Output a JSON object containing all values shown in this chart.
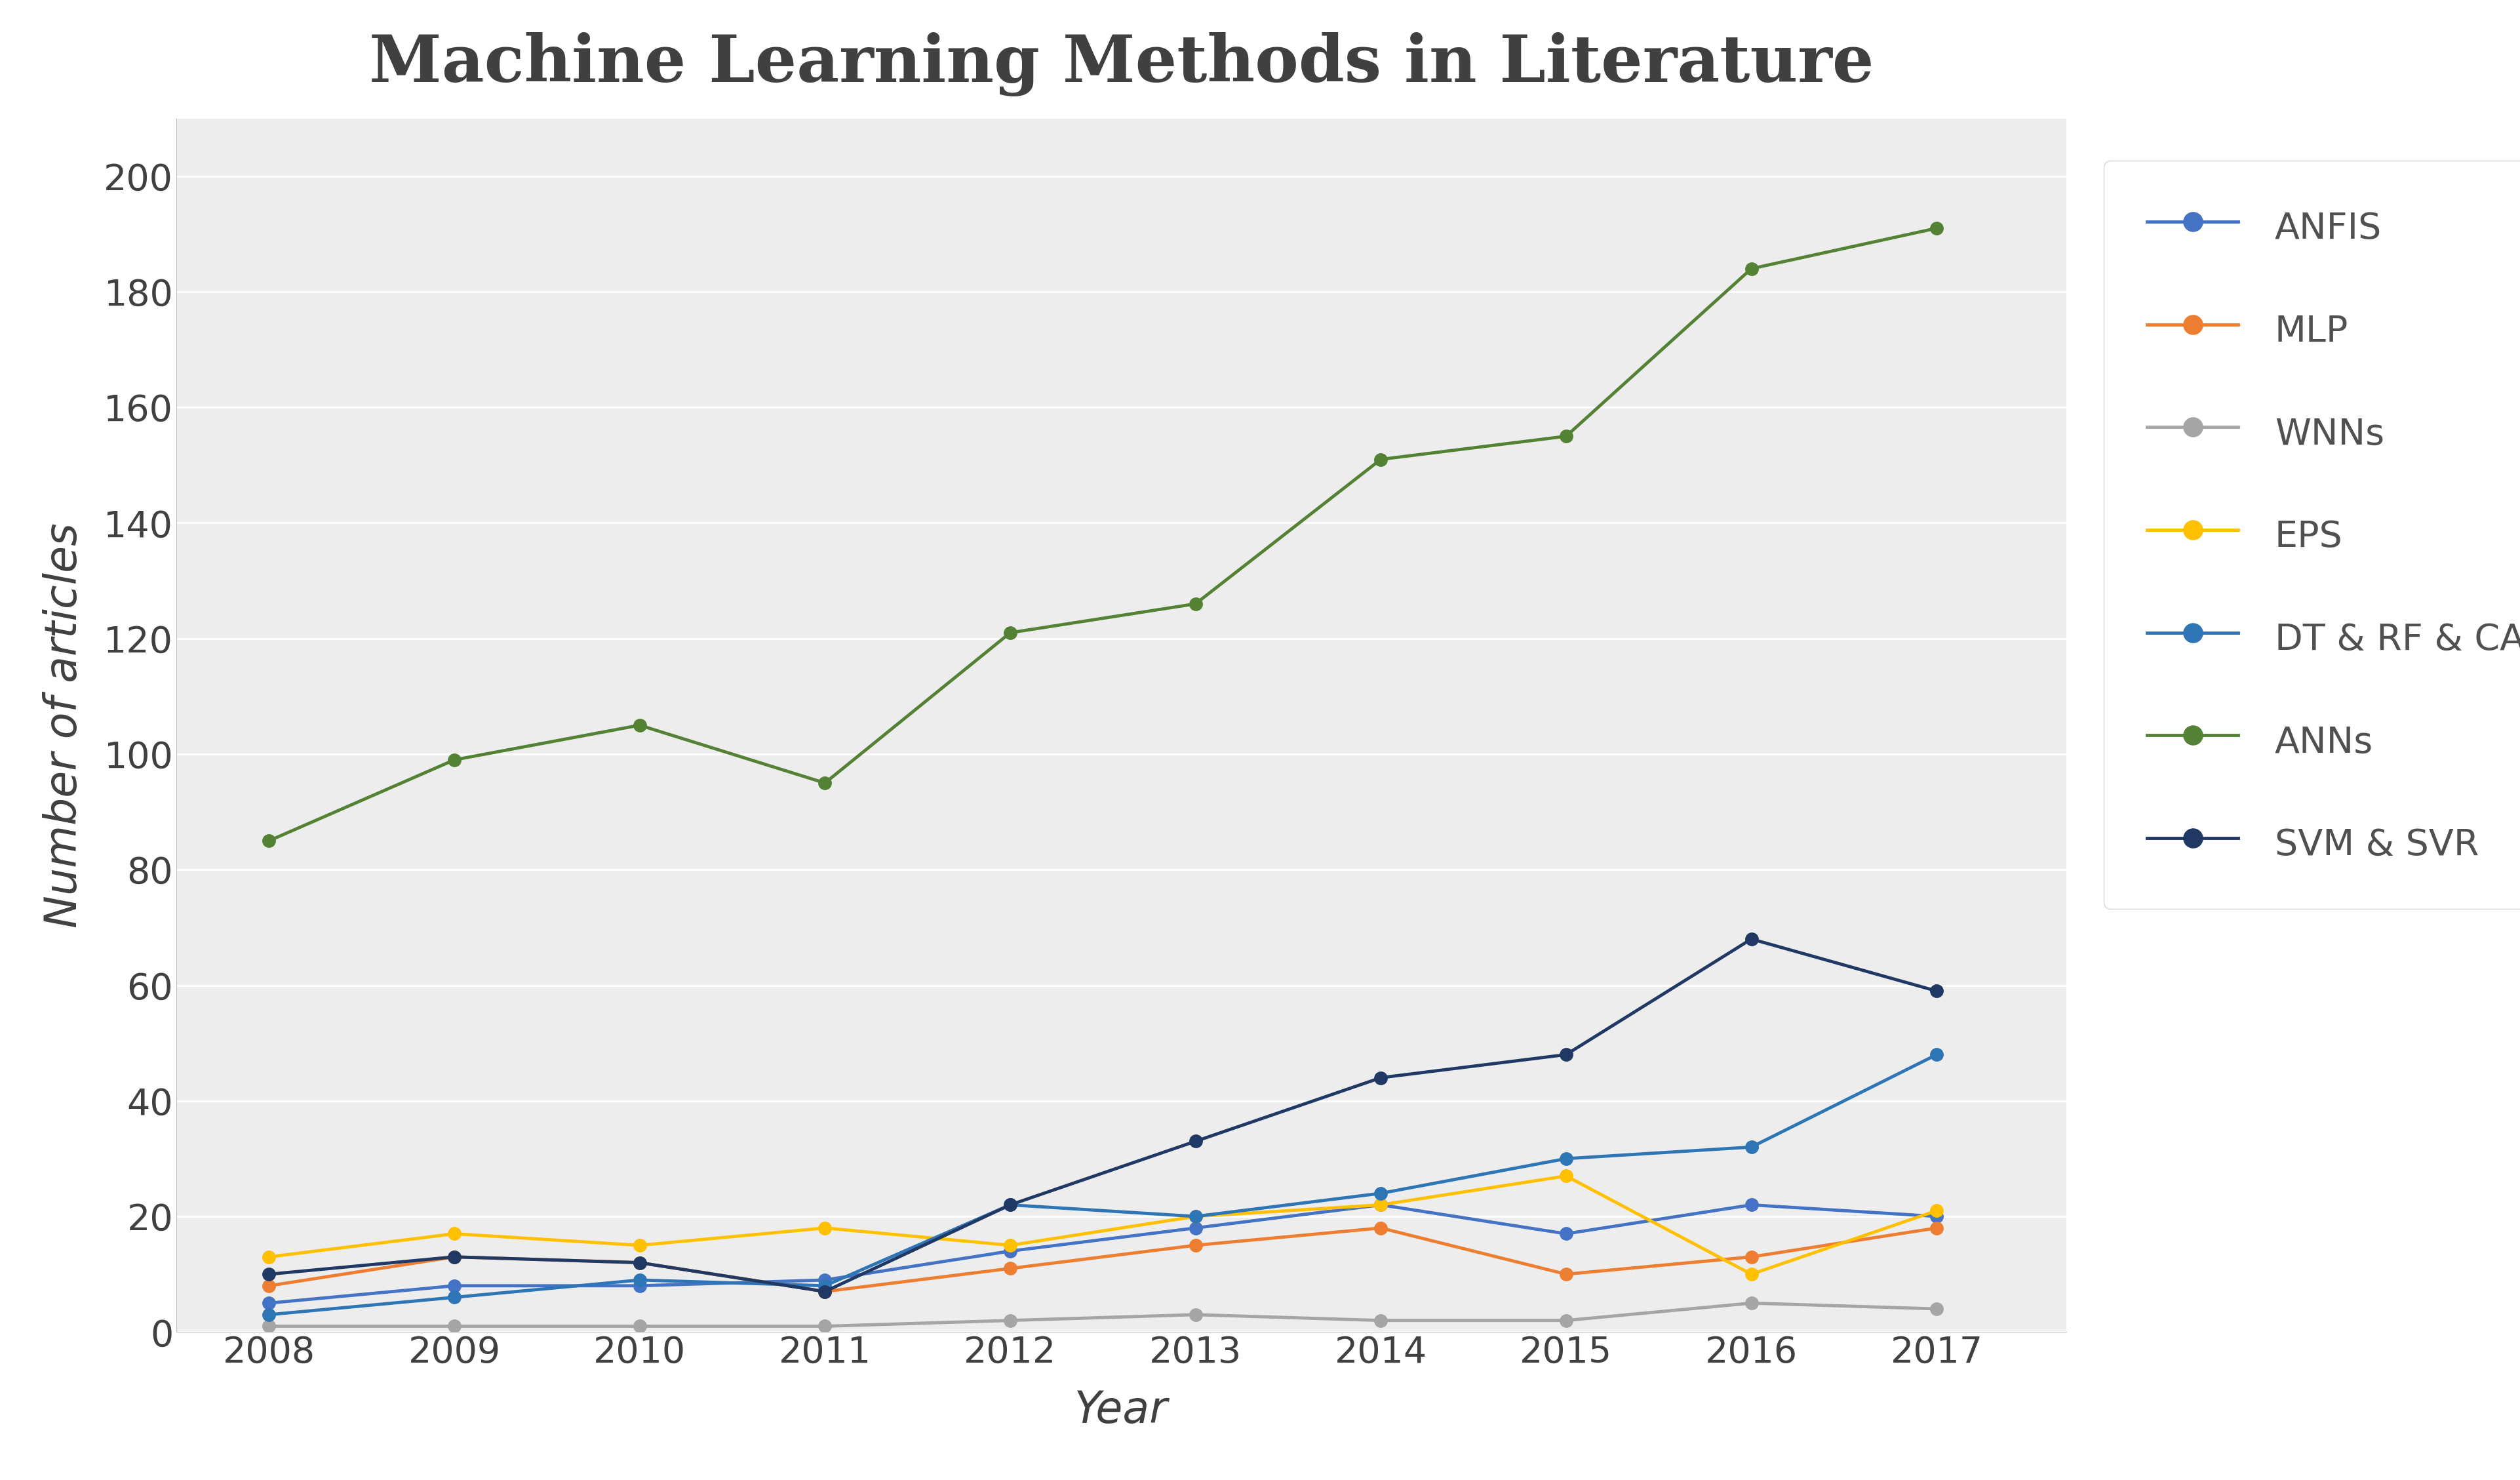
{
  "title": "Machine Learning Methods in Literature",
  "xlabel": "Year",
  "ylabel": "Number of articles",
  "years": [
    2008,
    2009,
    2010,
    2011,
    2012,
    2013,
    2014,
    2015,
    2016,
    2017
  ],
  "series": {
    "ANFIS": {
      "values": [
        5,
        8,
        8,
        9,
        14,
        18,
        22,
        17,
        22,
        20
      ],
      "color": "#4472C4",
      "marker": "o"
    },
    "MLP": {
      "values": [
        8,
        13,
        12,
        7,
        11,
        15,
        18,
        10,
        13,
        18
      ],
      "color": "#ED7D31",
      "marker": "o"
    },
    "WNNs": {
      "values": [
        1,
        1,
        1,
        1,
        2,
        3,
        2,
        2,
        5,
        4
      ],
      "color": "#A5A5A5",
      "marker": "o"
    },
    "EPS": {
      "values": [
        13,
        17,
        15,
        18,
        15,
        20,
        22,
        27,
        10,
        21
      ],
      "color": "#FFC000",
      "marker": "o"
    },
    "DT & RF & CART": {
      "values": [
        3,
        6,
        9,
        8,
        22,
        20,
        24,
        30,
        32,
        48
      ],
      "color": "#2E75B6",
      "marker": "o"
    },
    "ANNs": {
      "values": [
        85,
        99,
        105,
        95,
        121,
        126,
        151,
        155,
        184,
        191
      ],
      "color": "#548235",
      "marker": "o"
    },
    "SVM & SVR": {
      "values": [
        10,
        13,
        12,
        7,
        22,
        33,
        44,
        48,
        68,
        59
      ],
      "color": "#1F3864",
      "marker": "o"
    }
  },
  "ylim": [
    0,
    210
  ],
  "yticks": [
    0,
    20,
    40,
    60,
    80,
    100,
    120,
    140,
    160,
    180,
    200
  ],
  "bg_color": "#FFFFFF",
  "fig_bg_color": "#FFFFFF",
  "plot_bg_color": "#EDEDED",
  "grid_color": "#FFFFFF",
  "title_fontsize": 72,
  "label_fontsize": 48,
  "tick_fontsize": 40,
  "legend_fontsize": 40,
  "linewidth": 3.5,
  "markersize": 14
}
